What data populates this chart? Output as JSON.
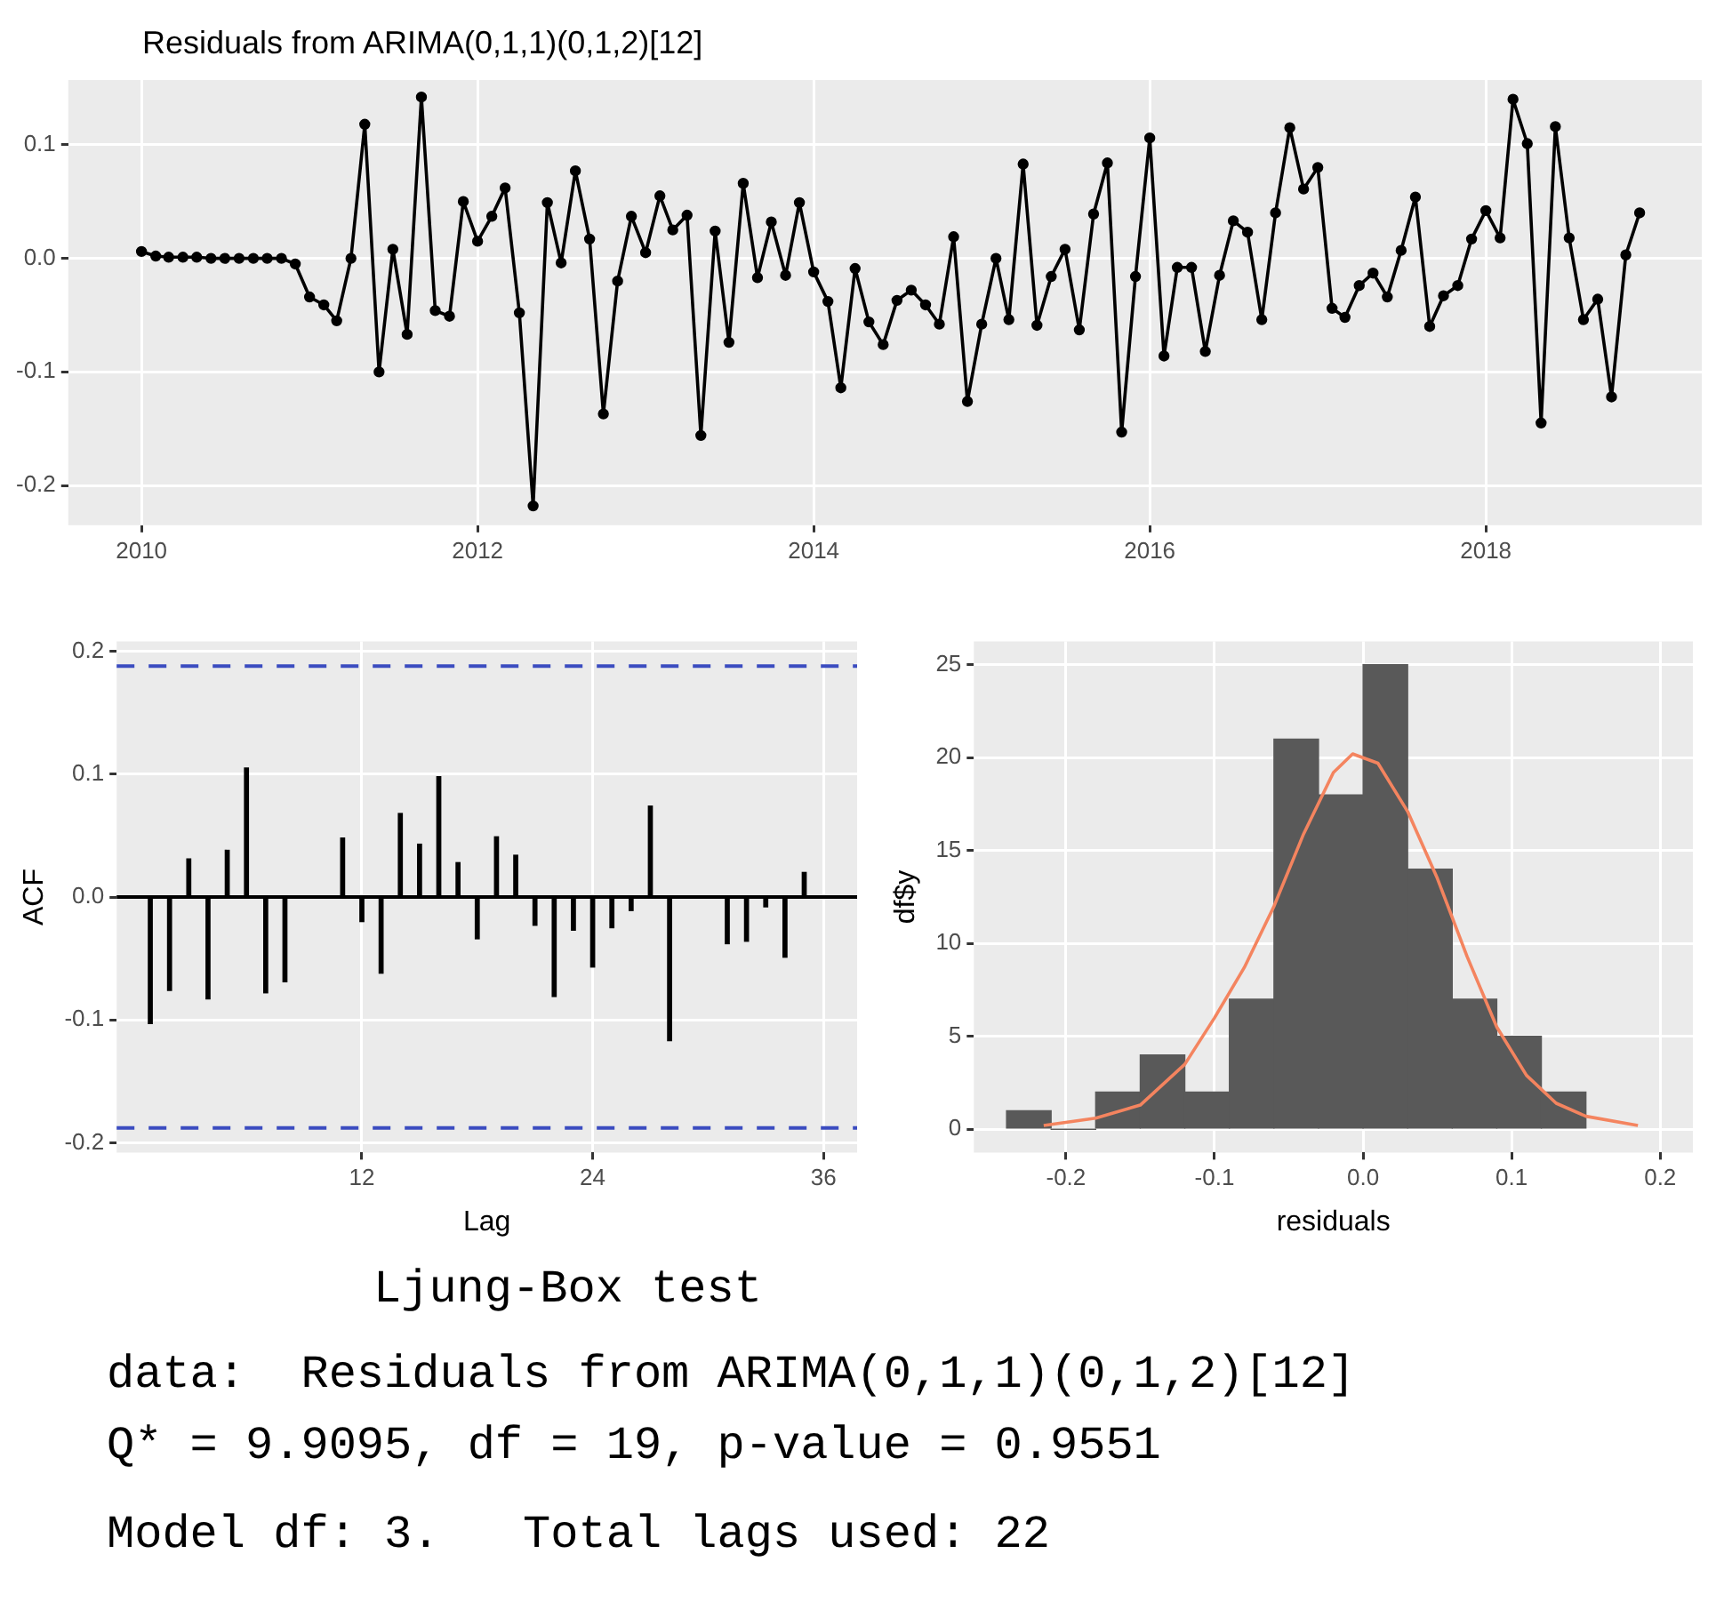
{
  "chart_data": [
    {
      "type": "line",
      "title": "Residuals from ARIMA(0,1,1)(0,1,2)[12]",
      "marker": "circle",
      "grid": true,
      "color": "#000000",
      "x": [
        "2010-01",
        "2010-02",
        "2010-03",
        "2010-04",
        "2010-05",
        "2010-06",
        "2010-07",
        "2010-08",
        "2010-09",
        "2010-10",
        "2010-11",
        "2010-12",
        "2011-01",
        "2011-02",
        "2011-03",
        "2011-04",
        "2011-05",
        "2011-06",
        "2011-07",
        "2011-08",
        "2011-09",
        "2011-10",
        "2011-11",
        "2011-12",
        "2012-01",
        "2012-02",
        "2012-03",
        "2012-04",
        "2012-05",
        "2012-06",
        "2012-07",
        "2012-08",
        "2012-09",
        "2012-10",
        "2012-11",
        "2012-12",
        "2013-01",
        "2013-02",
        "2013-03",
        "2013-04",
        "2013-05",
        "2013-06",
        "2013-07",
        "2013-08",
        "2013-09",
        "2013-10",
        "2013-11",
        "2013-12",
        "2014-01",
        "2014-02",
        "2014-03",
        "2014-04",
        "2014-05",
        "2014-06",
        "2014-07",
        "2014-08",
        "2014-09",
        "2014-10",
        "2014-11",
        "2014-12",
        "2015-01",
        "2015-02",
        "2015-03",
        "2015-04",
        "2015-05",
        "2015-06",
        "2015-07",
        "2015-08",
        "2015-09",
        "2015-10",
        "2015-11",
        "2015-12",
        "2016-01",
        "2016-02",
        "2016-03",
        "2016-04",
        "2016-05",
        "2016-06",
        "2016-07",
        "2016-08",
        "2016-09",
        "2016-10",
        "2016-11",
        "2016-12",
        "2017-01",
        "2017-02",
        "2017-03",
        "2017-04",
        "2017-05",
        "2017-06",
        "2017-07",
        "2017-08",
        "2017-09",
        "2017-10",
        "2017-11",
        "2017-12",
        "2018-01",
        "2018-02",
        "2018-03",
        "2018-04",
        "2018-05",
        "2018-06",
        "2018-07",
        "2018-08",
        "2018-09",
        "2018-10",
        "2018-11",
        "2018-12"
      ],
      "values": [
        0.006,
        0.002,
        0.001,
        0.001,
        0.001,
        0,
        0,
        0,
        0,
        0,
        0,
        -0.005,
        -0.034,
        -0.041,
        -0.055,
        0,
        0.118,
        -0.1,
        0.008,
        -0.067,
        0.142,
        -0.046,
        -0.051,
        0.05,
        0.015,
        0.037,
        0.062,
        -0.048,
        -0.218,
        0.049,
        -0.004,
        0.077,
        0.017,
        -0.137,
        -0.02,
        0.037,
        0.005,
        0.055,
        0.025,
        0.038,
        -0.156,
        0.024,
        -0.074,
        0.066,
        -0.017,
        0.032,
        -0.015,
        0.049,
        -0.012,
        -0.038,
        -0.114,
        -0.009,
        -0.056,
        -0.076,
        -0.037,
        -0.028,
        -0.041,
        -0.058,
        0.019,
        -0.126,
        -0.058,
        0,
        -0.054,
        0.083,
        -0.059,
        -0.016,
        0.008,
        -0.063,
        0.039,
        0.084,
        -0.153,
        -0.016,
        0.106,
        -0.086,
        -0.008,
        -0.008,
        -0.082,
        -0.015,
        0.033,
        0.023,
        -0.054,
        0.04,
        0.115,
        0.061,
        0.08,
        -0.044,
        -0.052,
        -0.024,
        -0.013,
        -0.034,
        0.007,
        0.054,
        -0.06,
        -0.033,
        -0.024,
        0.017,
        0.042,
        0.018,
        0.14,
        0.101,
        -0.145,
        0.116,
        0.018,
        -0.054,
        -0.036,
        -0.122,
        0.003,
        0.04
      ],
      "xlim": [
        "2009-07-26",
        "2019-04-15"
      ],
      "xticks": [
        "2010",
        "2012",
        "2014",
        "2016",
        "2018"
      ],
      "ylim": [
        -0.235,
        0.157
      ],
      "yticks": [
        -0.2,
        -0.1,
        {
          "value": 0,
          "label": "0.0"
        },
        0.1
      ]
    },
    {
      "type": "bar",
      "xlabel": "Lag",
      "ylabel": "ACF",
      "grid": true,
      "color": "#000000",
      "x": [
        1,
        2,
        3,
        4,
        5,
        6,
        7,
        8,
        9,
        10,
        11,
        12,
        13,
        14,
        15,
        16,
        17,
        18,
        19,
        20,
        21,
        22,
        23,
        24,
        25,
        26,
        27,
        28,
        29,
        30,
        31,
        32,
        33,
        34,
        35
      ],
      "values": [
        -0.103,
        -0.076,
        0.031,
        -0.083,
        0.038,
        0.105,
        -0.078,
        -0.069,
        null,
        null,
        0.048,
        -0.02,
        -0.062,
        0.068,
        0.043,
        0.098,
        0.028,
        -0.034,
        0.049,
        0.034,
        -0.023,
        -0.081,
        -0.027,
        -0.057,
        -0.025,
        -0.011,
        0.074,
        -0.117,
        null,
        null,
        -0.038,
        -0.036,
        -0.008,
        -0.049,
        0.02
      ],
      "xlim": [
        -0.75,
        37.75
      ],
      "xticks": [
        12,
        24,
        36
      ],
      "ylim": [
        -0.208,
        0.208
      ],
      "yticks": [
        -0.2,
        -0.1,
        {
          "value": 0,
          "label": "0.0"
        },
        0.1,
        0.2
      ],
      "ref_lines": [
        {
          "axis": "y",
          "value": 0.188,
          "color": "#3b4cc0",
          "line_style": "dashed"
        },
        {
          "axis": "y",
          "value": -0.188,
          "color": "#3b4cc0",
          "line_style": "dashed"
        },
        {
          "axis": "y",
          "value": 0,
          "color": "#000000",
          "line_style": "solid"
        }
      ]
    },
    {
      "type": "histogram",
      "xlabel": "residuals",
      "ylabel": "df$y",
      "grid": true,
      "bins": [
        -0.24,
        -0.21,
        -0.18,
        -0.15,
        -0.12,
        -0.09,
        -0.06,
        -0.03,
        0,
        0.03,
        0.06,
        0.09,
        0.12,
        0.15
      ],
      "series": [
        {
          "type": "histogram",
          "color": "#595959",
          "values": [
            1,
            0,
            2,
            4,
            2,
            7,
            21,
            18,
            25,
            14,
            7,
            5,
            2
          ]
        },
        {
          "type": "line",
          "color": "#f4845f",
          "marker": "none",
          "x": [
            -0.215,
            -0.18,
            -0.15,
            -0.12,
            -0.1,
            -0.08,
            -0.06,
            -0.04,
            -0.02,
            -0.007,
            0.01,
            0.03,
            0.05,
            0.07,
            0.09,
            0.11,
            0.13,
            0.15,
            0.185
          ],
          "values": [
            0.2,
            0.6,
            1.3,
            3.5,
            6,
            8.7,
            12,
            15.9,
            19.2,
            20.2,
            19.7,
            17.1,
            13.5,
            9.3,
            5.5,
            2.9,
            1.4,
            0.7,
            0.2
          ]
        }
      ],
      "xlim": [
        -0.262,
        0.222
      ],
      "xticks": [
        -0.2,
        -0.1,
        {
          "value": 0,
          "label": "0.0"
        },
        0.1,
        0.2
      ],
      "ylim": [
        -1.25,
        26.25
      ],
      "yticks": [
        0,
        5,
        10,
        15,
        20,
        25
      ]
    },
    {
      "type": "other",
      "title": "Ljung-Box test",
      "annotations": [
        "data:  Residuals from ARIMA(0,1,1)(0,1,2)[12]",
        "Q* = 9.9095, df = 19, p-value = 0.9551",
        "Model df: 3.   Total lags used: 22"
      ]
    }
  ]
}
